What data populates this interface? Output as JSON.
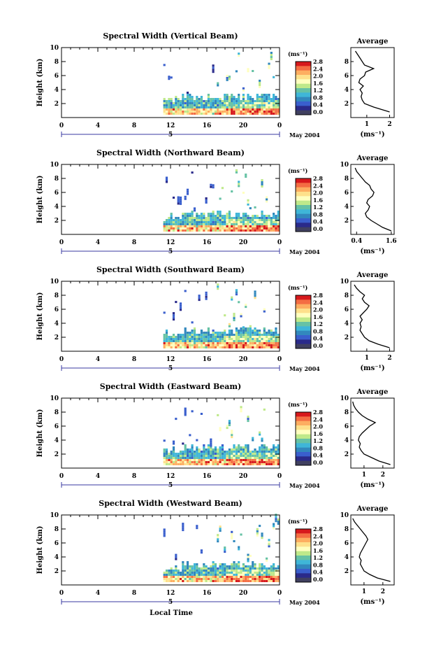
{
  "figure": {
    "xlabel": "Local Time",
    "date_label": "May 2004",
    "day_label": "5",
    "ylabel": "Height (km)",
    "colorbar_unit": "(ms⁻¹)",
    "colorbar_ticks": [
      "2.8",
      "2.4",
      "2.0",
      "1.6",
      "1.2",
      "0.8",
      "0.4",
      "0.0"
    ],
    "colorbar_colors": [
      "#d7191c",
      "#f46d43",
      "#fdae61",
      "#fee08b",
      "#ffffbf",
      "#bfe98a",
      "#66c2a5",
      "#3fb6d8",
      "#3288bd",
      "#3a5fcd",
      "#2a2a8a",
      "#404060"
    ],
    "x_ticks": [
      "0",
      "4",
      "8",
      "12",
      "16",
      "20",
      "0"
    ],
    "y_ticks": [
      "10",
      "8",
      "6",
      "4",
      "2"
    ]
  },
  "chart_data": [
    {
      "type": "heatmap",
      "title": "Spectral Width (Vertical Beam)",
      "xlabel": "Local Time",
      "ylabel": "Height (km)",
      "xlim": [
        0,
        24
      ],
      "ylim": [
        0,
        10
      ],
      "colorbar_range": [
        0.0,
        2.8
      ],
      "profile": {
        "title": "Average",
        "xlabel": "(ms⁻¹)",
        "xticks": [
          "1",
          "2"
        ],
        "xlim": [
          0.3,
          2.2
        ],
        "yticks": [
          "8",
          "6",
          "4",
          "2"
        ],
        "heights": [
          0.8,
          1.5,
          2.0,
          2.5,
          3.0,
          3.5,
          4.0,
          4.5,
          5.0,
          5.5,
          6.0,
          6.5,
          7.0,
          7.5,
          8.0,
          8.5,
          9.0,
          9.5
        ],
        "values": [
          2.0,
          1.3,
          0.9,
          0.8,
          0.75,
          0.8,
          0.7,
          0.85,
          0.65,
          0.7,
          0.9,
          0.95,
          1.3,
          0.9,
          0.8,
          0.7,
          0.6,
          0.5
        ]
      }
    },
    {
      "type": "heatmap",
      "title": "Spectral Width (Northward Beam)",
      "xlabel": "Local Time",
      "ylabel": "Height (km)",
      "xlim": [
        0,
        24
      ],
      "ylim": [
        0,
        10
      ],
      "colorbar_range": [
        0.0,
        2.8
      ],
      "profile": {
        "title": "Average",
        "xlabel": "(ms⁻¹)",
        "xticks": [
          "0.4",
          "1.6"
        ],
        "xlim": [
          0.2,
          1.7
        ],
        "yticks": [
          "10",
          "8",
          "6",
          "4",
          "2"
        ],
        "heights": [
          0.5,
          1.0,
          1.5,
          2.0,
          2.5,
          3.0,
          3.5,
          4.0,
          4.5,
          5.0,
          5.5,
          6.0,
          6.5,
          7.0,
          7.5,
          8.0,
          8.5,
          9.0,
          9.5
        ],
        "values": [
          1.6,
          1.3,
          1.1,
          0.9,
          0.75,
          0.7,
          0.8,
          0.85,
          0.75,
          0.8,
          0.95,
          1.0,
          0.9,
          0.85,
          0.7,
          0.6,
          0.5,
          0.4,
          0.35
        ]
      }
    },
    {
      "type": "heatmap",
      "title": "Spectral Width (Southward Beam)",
      "xlabel": "Local Time",
      "ylabel": "Height (km)",
      "xlim": [
        0,
        24
      ],
      "ylim": [
        0,
        10
      ],
      "colorbar_range": [
        0.0,
        2.8
      ],
      "profile": {
        "title": "Average",
        "xlabel": "(ms⁻¹)",
        "xticks": [
          "1",
          "2"
        ],
        "xlim": [
          0.3,
          2.2
        ],
        "yticks": [
          "10",
          "8",
          "6",
          "4",
          "2"
        ],
        "heights": [
          0.5,
          1.0,
          1.5,
          2.0,
          2.5,
          3.0,
          3.5,
          4.0,
          4.5,
          5.0,
          5.5,
          6.0,
          6.5,
          7.0,
          7.5,
          8.0,
          8.5,
          9.0,
          9.5
        ],
        "values": [
          2.0,
          1.5,
          1.1,
          0.9,
          0.8,
          0.7,
          0.75,
          0.7,
          0.8,
          0.7,
          0.85,
          1.0,
          1.1,
          0.9,
          0.8,
          0.9,
          0.7,
          0.55,
          0.45
        ]
      }
    },
    {
      "type": "heatmap",
      "title": "Spectral Width (Eastward Beam)",
      "xlabel": "Local Time",
      "ylabel": "Height (km)",
      "xlim": [
        0,
        24
      ],
      "ylim": [
        0,
        10
      ],
      "colorbar_range": [
        0.0,
        2.8
      ],
      "profile": {
        "title": "Average",
        "xlabel": "(ms⁻¹)",
        "xticks": [
          "1",
          "2"
        ],
        "xlim": [
          0.3,
          2.6
        ],
        "yticks": [
          "10",
          "8",
          "6",
          "4",
          "2"
        ],
        "heights": [
          0.5,
          1.0,
          1.5,
          2.0,
          2.5,
          3.0,
          3.5,
          4.0,
          4.5,
          5.0,
          5.5,
          6.0,
          6.5,
          7.0,
          7.5,
          8.0,
          8.5,
          9.0,
          9.5
        ],
        "values": [
          2.4,
          1.8,
          1.4,
          1.0,
          0.85,
          0.75,
          0.8,
          0.7,
          0.75,
          0.9,
          1.1,
          1.3,
          1.6,
          1.2,
          0.9,
          0.7,
          0.55,
          0.45,
          0.4
        ]
      }
    },
    {
      "type": "heatmap",
      "title": "Spectral Width (Westward Beam)",
      "xlabel": "Local Time",
      "ylabel": "Height (km)",
      "xlim": [
        0,
        24
      ],
      "ylim": [
        0,
        10
      ],
      "colorbar_range": [
        0.0,
        2.8
      ],
      "profile": {
        "title": "Average",
        "xlabel": "(ms⁻¹)",
        "xticks": [
          "1",
          "2"
        ],
        "xlim": [
          0.3,
          2.6
        ],
        "yticks": [
          "10",
          "8",
          "6",
          "4",
          "2"
        ],
        "heights": [
          0.5,
          1.0,
          1.5,
          2.0,
          2.5,
          3.0,
          3.5,
          4.0,
          4.5,
          5.0,
          5.5,
          6.0,
          6.5,
          7.0,
          7.5,
          8.0,
          8.5,
          9.0,
          9.5
        ],
        "values": [
          2.4,
          1.7,
          1.3,
          1.0,
          0.9,
          0.8,
          0.85,
          0.75,
          0.8,
          0.9,
          1.0,
          1.1,
          1.2,
          1.1,
          0.95,
          0.8,
          0.65,
          0.5,
          0.4
        ]
      }
    }
  ]
}
